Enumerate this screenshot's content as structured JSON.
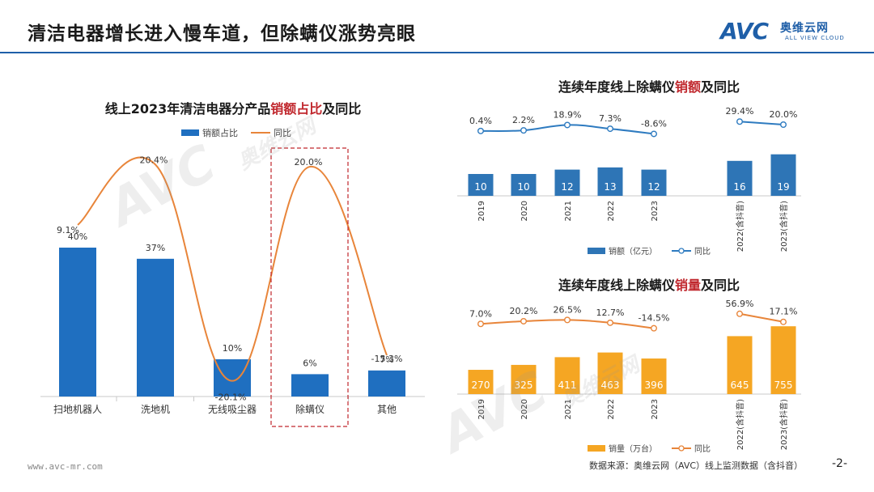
{
  "header": {
    "title": "清洁电器增长进入慢车道，但除螨仪涨势亮眼",
    "logo_text": "AVC",
    "logo_cn": "奥维云网",
    "logo_en": "ALL VIEW CLOUD"
  },
  "footer": {
    "url": "www.avc-mr.com",
    "source": "数据来源：奥维云网（AVC）线上监测数据（含抖音）",
    "page": "-2-"
  },
  "colors": {
    "brand_blue": "#1f5fa8",
    "bar_blue": "#1f6fc0",
    "bar_orange": "#f5a623",
    "line_orange": "#e8853a",
    "line_blue": "#2e7bc0",
    "highlight_red": "#c0272d"
  },
  "chart_data": [
    {
      "type": "bar",
      "title_parts": [
        "线上2023年清洁电器分产品",
        "销额占比",
        "及同比"
      ],
      "categories": [
        "扫地机器人",
        "洗地机",
        "无线吸尘器",
        "除螨仪",
        "其他"
      ],
      "series": [
        {
          "name": "销额占比",
          "values": [
            40,
            37,
            10,
            6,
            7
          ],
          "labels": [
            "40%",
            "37%",
            "10%",
            "6%",
            "7%"
          ]
        },
        {
          "name": "同比",
          "values": [
            9.1,
            20.4,
            -20.1,
            20.0,
            -15.3
          ],
          "labels": [
            "9.1%",
            "20.4%",
            "-20.1%",
            "20.0%",
            "-15.3%"
          ]
        }
      ],
      "highlight_category": "除螨仪",
      "legend": "top"
    },
    {
      "type": "bar",
      "title_parts": [
        "连续年度线上除螨仪",
        "销额",
        "及同比"
      ],
      "categories": [
        "2019",
        "2020",
        "2021",
        "2022",
        "2023",
        "2022(含抖音)",
        "2023(含抖音)"
      ],
      "series": [
        {
          "name": "销额（亿元）",
          "values": [
            10,
            10,
            12,
            13,
            12,
            16,
            19
          ]
        },
        {
          "name": "同比",
          "values": [
            0.4,
            2.2,
            18.9,
            7.3,
            -8.6,
            29.4,
            20.0
          ],
          "labels": [
            "0.4%",
            "2.2%",
            "18.9%",
            "7.3%",
            "-8.6%",
            "29.4%",
            "20.0%"
          ]
        }
      ],
      "legend": "bottom"
    },
    {
      "type": "bar",
      "title_parts": [
        "连续年度线上除螨仪",
        "销量",
        "及同比"
      ],
      "categories": [
        "2019",
        "2020",
        "2021",
        "2022",
        "2023",
        "2022(含抖音)",
        "2023(含抖音)"
      ],
      "series": [
        {
          "name": "销量（万台）",
          "values": [
            270,
            325,
            411,
            463,
            396,
            645,
            755
          ]
        },
        {
          "name": "同比",
          "values": [
            7.0,
            20.2,
            26.5,
            12.7,
            -14.5,
            56.9,
            17.1
          ],
          "labels": [
            "7.0%",
            "20.2%",
            "26.5%",
            "12.7%",
            "-14.5%",
            "56.9%",
            "17.1%"
          ]
        }
      ],
      "legend": "bottom"
    }
  ]
}
